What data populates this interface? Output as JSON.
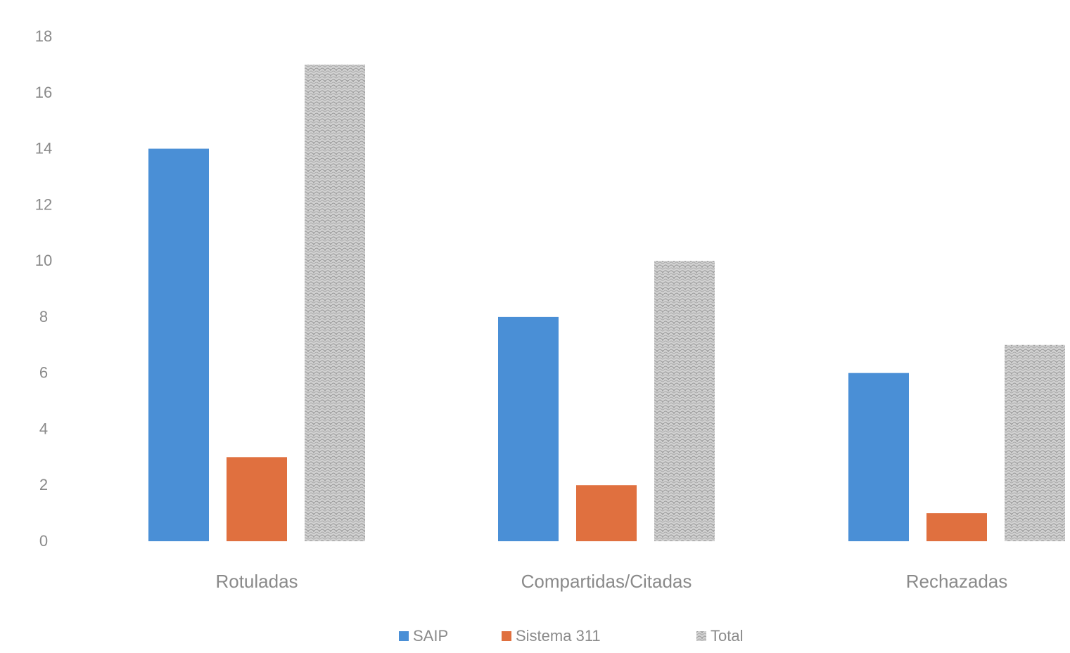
{
  "chart_data": {
    "type": "bar",
    "title": "",
    "xlabel": "",
    "ylabel": "",
    "categories": [
      "Rotuladas",
      "Compartidas/Citadas",
      "Rechazadas"
    ],
    "series": [
      {
        "name": "SAIP",
        "color": "#4a8fd6",
        "values": [
          14,
          8,
          6
        ]
      },
      {
        "name": "Sistema 311",
        "color": "#e0703f",
        "values": [
          3,
          2,
          1
        ]
      },
      {
        "name": "Total",
        "color": "#bdbdbd",
        "values": [
          17,
          10,
          7
        ]
      }
    ],
    "ylim": [
      0,
      18
    ],
    "yticks": [
      "0",
      "2",
      "4",
      "6",
      "8",
      "10",
      "12",
      "14",
      "16",
      "18"
    ],
    "grid": false,
    "legend_position": "bottom-center"
  }
}
